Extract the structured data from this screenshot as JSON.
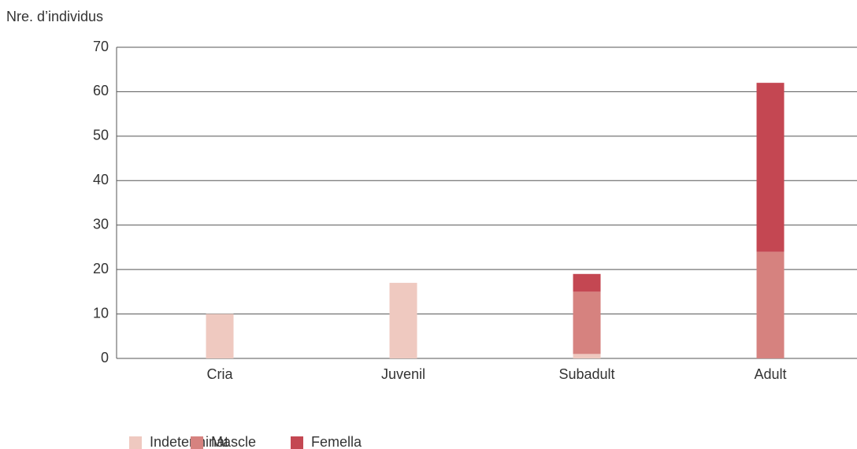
{
  "chart_data": {
    "type": "bar",
    "stacked": true,
    "y_label": "Nre. d’individus",
    "categories": [
      "Cria",
      "Juvenil",
      "Subadult",
      "Adult"
    ],
    "series": [
      {
        "name": "Indeterminat",
        "color": "#efc9c0",
        "values": [
          10,
          17,
          1,
          0
        ]
      },
      {
        "name": "Mascle",
        "color": "#d6827f",
        "values": [
          0,
          0,
          14,
          24
        ]
      },
      {
        "name": "Femella",
        "color": "#c44752",
        "values": [
          0,
          0,
          4,
          38
        ]
      }
    ],
    "ylim": [
      0,
      70
    ],
    "yticks": [
      0,
      10,
      20,
      30,
      40,
      50,
      60,
      70
    ],
    "grid": true,
    "legend": "bottom"
  }
}
